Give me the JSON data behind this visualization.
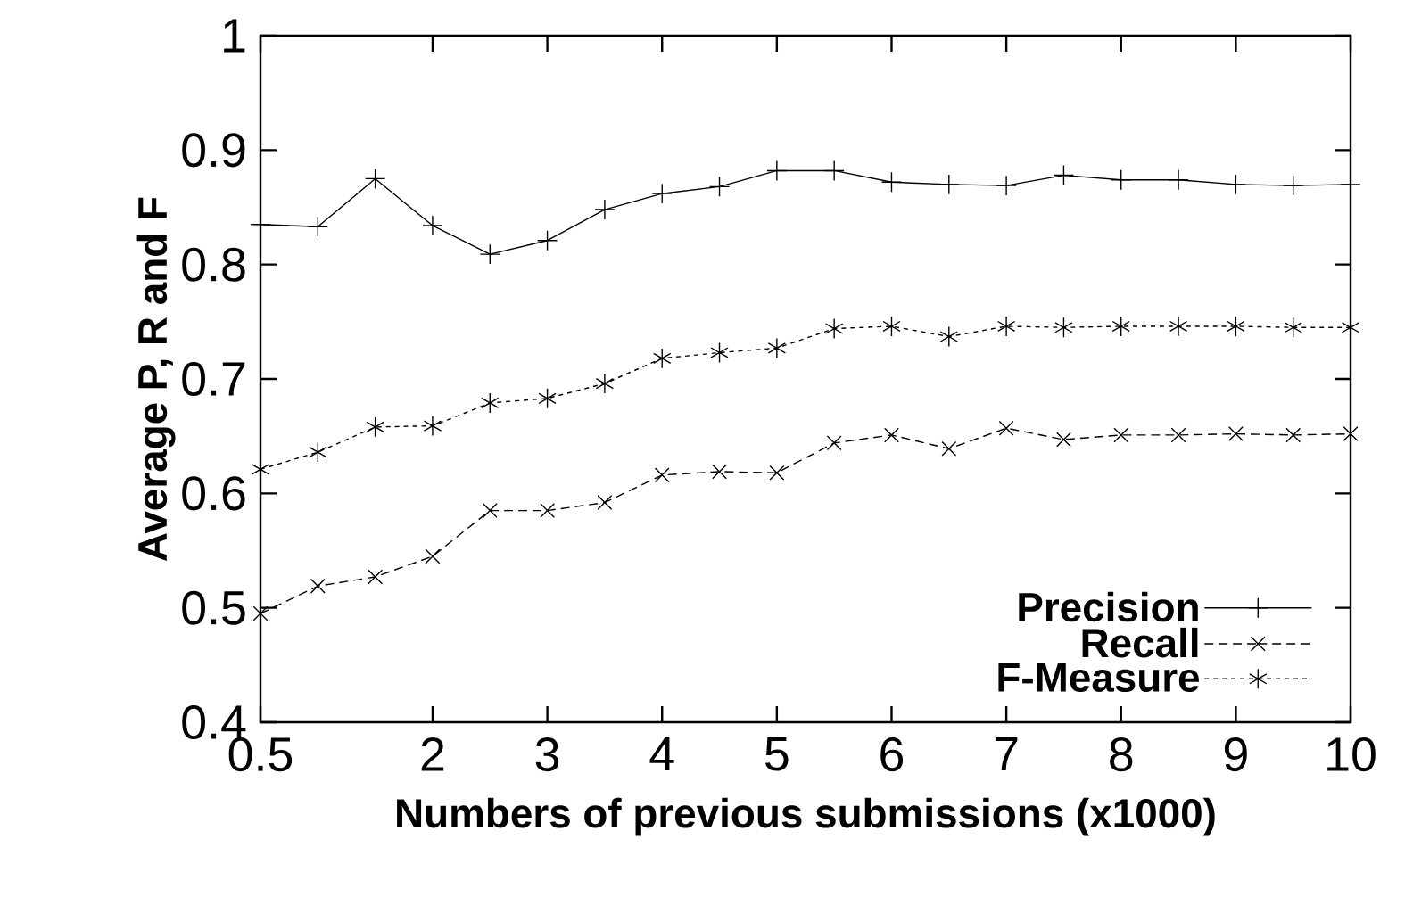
{
  "chart_data": {
    "type": "line",
    "xlabel": "Numbers of previous submissions (x1000)",
    "ylabel": "Average P, R and F",
    "x": [
      0.5,
      1,
      1.5,
      2,
      2.5,
      3,
      3.5,
      4,
      4.5,
      5,
      5.5,
      6,
      6.5,
      7,
      7.5,
      8,
      8.5,
      9,
      9.5,
      10
    ],
    "series": [
      {
        "name": "Precision",
        "color": "#000000",
        "marker": "plus",
        "line_style": "solid",
        "values": [
          0.835,
          0.833,
          0.875,
          0.834,
          0.809,
          0.821,
          0.848,
          0.862,
          0.868,
          0.882,
          0.882,
          0.872,
          0.87,
          0.869,
          0.878,
          0.874,
          0.874,
          0.87,
          0.869,
          0.87
        ]
      },
      {
        "name": "Recall",
        "color": "#000000",
        "marker": "cross",
        "line_style": "dashed",
        "values": [
          0.495,
          0.519,
          0.527,
          0.545,
          0.585,
          0.585,
          0.592,
          0.616,
          0.619,
          0.618,
          0.644,
          0.651,
          0.639,
          0.657,
          0.647,
          0.651,
          0.651,
          0.652,
          0.651,
          0.652
        ]
      },
      {
        "name": "F-Measure",
        "color": "#000000",
        "marker": "cross",
        "line_style": "dotted",
        "values": [
          0.621,
          0.636,
          0.658,
          0.659,
          0.679,
          0.683,
          0.696,
          0.718,
          0.723,
          0.727,
          0.744,
          0.746,
          0.737,
          0.746,
          0.745,
          0.746,
          0.746,
          0.746,
          0.745,
          0.745
        ]
      }
    ],
    "xlim": [
      0.5,
      10
    ],
    "xticks": [
      0.5,
      2,
      3,
      4,
      5,
      6,
      7,
      8,
      9,
      10
    ],
    "ylim": [
      0.4,
      1
    ],
    "yticks": [
      0.4,
      0.5,
      0.6,
      0.7,
      0.8,
      0.9,
      1
    ],
    "grid": false,
    "legend": "bottom right"
  }
}
